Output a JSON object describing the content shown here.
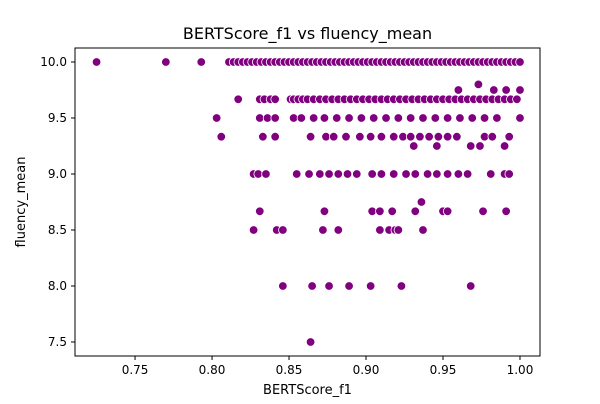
{
  "chart_data": {
    "type": "scatter",
    "title": "BERTScore_f1 vs fluency_mean",
    "xlabel": "BERTScore_f1",
    "ylabel": "fluency_mean",
    "xlim": [
      0.711,
      1.013
    ],
    "ylim": [
      7.375,
      10.125
    ],
    "xticks": [
      0.75,
      0.8,
      0.85,
      0.9,
      0.95,
      1.0
    ],
    "xtick_labels": [
      "0.75",
      "0.80",
      "0.85",
      "0.90",
      "0.95",
      "1.00"
    ],
    "yticks": [
      7.5,
      8.0,
      8.5,
      9.0,
      9.5,
      10.0
    ],
    "ytick_labels": [
      "7.5",
      "8.0",
      "8.5",
      "9.0",
      "9.5",
      "10.0"
    ],
    "grid": false,
    "marker_color": "#800080",
    "marker_edge_color": "#ffffff",
    "points": [
      {
        "x": 0.725,
        "y": 10.0
      },
      {
        "x": 0.77,
        "y": 10.0
      },
      {
        "x": 0.793,
        "y": 10.0
      },
      {
        "x": 0.811,
        "y": 10.0
      },
      {
        "x": 0.814,
        "y": 10.0
      },
      {
        "x": 0.817,
        "y": 10.0
      },
      {
        "x": 0.82,
        "y": 10.0
      },
      {
        "x": 0.823,
        "y": 10.0
      },
      {
        "x": 0.826,
        "y": 10.0
      },
      {
        "x": 0.829,
        "y": 10.0
      },
      {
        "x": 0.832,
        "y": 10.0
      },
      {
        "x": 0.835,
        "y": 10.0
      },
      {
        "x": 0.838,
        "y": 10.0
      },
      {
        "x": 0.841,
        "y": 10.0
      },
      {
        "x": 0.844,
        "y": 10.0
      },
      {
        "x": 0.847,
        "y": 10.0
      },
      {
        "x": 0.85,
        "y": 10.0
      },
      {
        "x": 0.853,
        "y": 10.0
      },
      {
        "x": 0.856,
        "y": 10.0
      },
      {
        "x": 0.859,
        "y": 10.0
      },
      {
        "x": 0.862,
        "y": 10.0
      },
      {
        "x": 0.865,
        "y": 10.0
      },
      {
        "x": 0.868,
        "y": 10.0
      },
      {
        "x": 0.871,
        "y": 10.0
      },
      {
        "x": 0.874,
        "y": 10.0
      },
      {
        "x": 0.877,
        "y": 10.0
      },
      {
        "x": 0.88,
        "y": 10.0
      },
      {
        "x": 0.883,
        "y": 10.0
      },
      {
        "x": 0.886,
        "y": 10.0
      },
      {
        "x": 0.889,
        "y": 10.0
      },
      {
        "x": 0.892,
        "y": 10.0
      },
      {
        "x": 0.895,
        "y": 10.0
      },
      {
        "x": 0.898,
        "y": 10.0
      },
      {
        "x": 0.901,
        "y": 10.0
      },
      {
        "x": 0.904,
        "y": 10.0
      },
      {
        "x": 0.907,
        "y": 10.0
      },
      {
        "x": 0.91,
        "y": 10.0
      },
      {
        "x": 0.913,
        "y": 10.0
      },
      {
        "x": 0.916,
        "y": 10.0
      },
      {
        "x": 0.919,
        "y": 10.0
      },
      {
        "x": 0.922,
        "y": 10.0
      },
      {
        "x": 0.925,
        "y": 10.0
      },
      {
        "x": 0.928,
        "y": 10.0
      },
      {
        "x": 0.931,
        "y": 10.0
      },
      {
        "x": 0.934,
        "y": 10.0
      },
      {
        "x": 0.937,
        "y": 10.0
      },
      {
        "x": 0.94,
        "y": 10.0
      },
      {
        "x": 0.943,
        "y": 10.0
      },
      {
        "x": 0.946,
        "y": 10.0
      },
      {
        "x": 0.949,
        "y": 10.0
      },
      {
        "x": 0.952,
        "y": 10.0
      },
      {
        "x": 0.955,
        "y": 10.0
      },
      {
        "x": 0.958,
        "y": 10.0
      },
      {
        "x": 0.961,
        "y": 10.0
      },
      {
        "x": 0.964,
        "y": 10.0
      },
      {
        "x": 0.967,
        "y": 10.0
      },
      {
        "x": 0.97,
        "y": 10.0
      },
      {
        "x": 0.973,
        "y": 10.0
      },
      {
        "x": 0.976,
        "y": 10.0
      },
      {
        "x": 0.979,
        "y": 10.0
      },
      {
        "x": 0.982,
        "y": 10.0
      },
      {
        "x": 0.985,
        "y": 10.0
      },
      {
        "x": 0.988,
        "y": 10.0
      },
      {
        "x": 0.991,
        "y": 10.0
      },
      {
        "x": 0.994,
        "y": 10.0
      },
      {
        "x": 0.997,
        "y": 10.0
      },
      {
        "x": 1.0,
        "y": 10.0
      },
      {
        "x": 0.973,
        "y": 9.8
      },
      {
        "x": 0.96,
        "y": 9.75
      },
      {
        "x": 0.983,
        "y": 9.75
      },
      {
        "x": 0.991,
        "y": 9.75
      },
      {
        "x": 1.0,
        "y": 9.75
      },
      {
        "x": 0.817,
        "y": 9.667
      },
      {
        "x": 0.831,
        "y": 9.667
      },
      {
        "x": 0.834,
        "y": 9.667
      },
      {
        "x": 0.838,
        "y": 9.667
      },
      {
        "x": 0.841,
        "y": 9.667
      },
      {
        "x": 0.851,
        "y": 9.667
      },
      {
        "x": 0.853,
        "y": 9.667
      },
      {
        "x": 0.856,
        "y": 9.667
      },
      {
        "x": 0.859,
        "y": 9.667
      },
      {
        "x": 0.862,
        "y": 9.667
      },
      {
        "x": 0.866,
        "y": 9.667
      },
      {
        "x": 0.87,
        "y": 9.667
      },
      {
        "x": 0.874,
        "y": 9.667
      },
      {
        "x": 0.878,
        "y": 9.667
      },
      {
        "x": 0.882,
        "y": 9.667
      },
      {
        "x": 0.886,
        "y": 9.667
      },
      {
        "x": 0.89,
        "y": 9.667
      },
      {
        "x": 0.894,
        "y": 9.667
      },
      {
        "x": 0.898,
        "y": 9.667
      },
      {
        "x": 0.902,
        "y": 9.667
      },
      {
        "x": 0.906,
        "y": 9.667
      },
      {
        "x": 0.91,
        "y": 9.667
      },
      {
        "x": 0.914,
        "y": 9.667
      },
      {
        "x": 0.918,
        "y": 9.667
      },
      {
        "x": 0.922,
        "y": 9.667
      },
      {
        "x": 0.926,
        "y": 9.667
      },
      {
        "x": 0.93,
        "y": 9.667
      },
      {
        "x": 0.934,
        "y": 9.667
      },
      {
        "x": 0.938,
        "y": 9.667
      },
      {
        "x": 0.942,
        "y": 9.667
      },
      {
        "x": 0.946,
        "y": 9.667
      },
      {
        "x": 0.95,
        "y": 9.667
      },
      {
        "x": 0.954,
        "y": 9.667
      },
      {
        "x": 0.958,
        "y": 9.667
      },
      {
        "x": 0.962,
        "y": 9.667
      },
      {
        "x": 0.966,
        "y": 9.667
      },
      {
        "x": 0.97,
        "y": 9.667
      },
      {
        "x": 0.974,
        "y": 9.667
      },
      {
        "x": 0.978,
        "y": 9.667
      },
      {
        "x": 0.982,
        "y": 9.667
      },
      {
        "x": 0.986,
        "y": 9.667
      },
      {
        "x": 0.99,
        "y": 9.667
      },
      {
        "x": 0.994,
        "y": 9.667
      },
      {
        "x": 0.998,
        "y": 9.667
      },
      {
        "x": 0.803,
        "y": 9.5
      },
      {
        "x": 0.831,
        "y": 9.5
      },
      {
        "x": 0.836,
        "y": 9.5
      },
      {
        "x": 0.841,
        "y": 9.5
      },
      {
        "x": 0.853,
        "y": 9.5
      },
      {
        "x": 0.858,
        "y": 9.5
      },
      {
        "x": 0.866,
        "y": 9.5
      },
      {
        "x": 0.873,
        "y": 9.5
      },
      {
        "x": 0.881,
        "y": 9.5
      },
      {
        "x": 0.889,
        "y": 9.5
      },
      {
        "x": 0.897,
        "y": 9.5
      },
      {
        "x": 0.905,
        "y": 9.5
      },
      {
        "x": 0.913,
        "y": 9.5
      },
      {
        "x": 0.921,
        "y": 9.5
      },
      {
        "x": 0.929,
        "y": 9.5
      },
      {
        "x": 0.937,
        "y": 9.5
      },
      {
        "x": 0.945,
        "y": 9.5
      },
      {
        "x": 0.953,
        "y": 9.5
      },
      {
        "x": 0.961,
        "y": 9.5
      },
      {
        "x": 0.969,
        "y": 9.5
      },
      {
        "x": 0.977,
        "y": 9.5
      },
      {
        "x": 0.985,
        "y": 9.5
      },
      {
        "x": 1.0,
        "y": 9.5
      },
      {
        "x": 0.806,
        "y": 9.333
      },
      {
        "x": 0.833,
        "y": 9.333
      },
      {
        "x": 0.841,
        "y": 9.333
      },
      {
        "x": 0.864,
        "y": 9.333
      },
      {
        "x": 0.874,
        "y": 9.333
      },
      {
        "x": 0.879,
        "y": 9.333
      },
      {
        "x": 0.887,
        "y": 9.333
      },
      {
        "x": 0.896,
        "y": 9.333
      },
      {
        "x": 0.903,
        "y": 9.333
      },
      {
        "x": 0.91,
        "y": 9.333
      },
      {
        "x": 0.918,
        "y": 9.333
      },
      {
        "x": 0.924,
        "y": 9.333
      },
      {
        "x": 0.929,
        "y": 9.333
      },
      {
        "x": 0.935,
        "y": 9.333
      },
      {
        "x": 0.941,
        "y": 9.333
      },
      {
        "x": 0.947,
        "y": 9.333
      },
      {
        "x": 0.953,
        "y": 9.333
      },
      {
        "x": 0.959,
        "y": 9.333
      },
      {
        "x": 0.977,
        "y": 9.333
      },
      {
        "x": 0.982,
        "y": 9.333
      },
      {
        "x": 0.993,
        "y": 9.333
      },
      {
        "x": 0.931,
        "y": 9.25
      },
      {
        "x": 0.946,
        "y": 9.25
      },
      {
        "x": 0.968,
        "y": 9.25
      },
      {
        "x": 0.974,
        "y": 9.25
      },
      {
        "x": 0.99,
        "y": 9.25
      },
      {
        "x": 0.827,
        "y": 9.0
      },
      {
        "x": 0.83,
        "y": 9.0
      },
      {
        "x": 0.835,
        "y": 9.0
      },
      {
        "x": 0.855,
        "y": 9.0
      },
      {
        "x": 0.863,
        "y": 9.0
      },
      {
        "x": 0.87,
        "y": 9.0
      },
      {
        "x": 0.876,
        "y": 9.0
      },
      {
        "x": 0.882,
        "y": 9.0
      },
      {
        "x": 0.888,
        "y": 9.0
      },
      {
        "x": 0.894,
        "y": 9.0
      },
      {
        "x": 0.904,
        "y": 9.0
      },
      {
        "x": 0.91,
        "y": 9.0
      },
      {
        "x": 0.918,
        "y": 9.0
      },
      {
        "x": 0.926,
        "y": 9.0
      },
      {
        "x": 0.932,
        "y": 9.0
      },
      {
        "x": 0.94,
        "y": 9.0
      },
      {
        "x": 0.946,
        "y": 9.0
      },
      {
        "x": 0.953,
        "y": 9.0
      },
      {
        "x": 0.96,
        "y": 9.0
      },
      {
        "x": 0.966,
        "y": 9.0
      },
      {
        "x": 0.981,
        "y": 9.0
      },
      {
        "x": 0.99,
        "y": 9.0
      },
      {
        "x": 0.993,
        "y": 9.0
      },
      {
        "x": 0.936,
        "y": 8.75
      },
      {
        "x": 0.831,
        "y": 8.667
      },
      {
        "x": 0.873,
        "y": 8.667
      },
      {
        "x": 0.904,
        "y": 8.667
      },
      {
        "x": 0.909,
        "y": 8.667
      },
      {
        "x": 0.917,
        "y": 8.667
      },
      {
        "x": 0.932,
        "y": 8.667
      },
      {
        "x": 0.95,
        "y": 8.667
      },
      {
        "x": 0.953,
        "y": 8.667
      },
      {
        "x": 0.976,
        "y": 8.667
      },
      {
        "x": 0.991,
        "y": 8.667
      },
      {
        "x": 0.827,
        "y": 8.5
      },
      {
        "x": 0.842,
        "y": 8.5
      },
      {
        "x": 0.846,
        "y": 8.5
      },
      {
        "x": 0.872,
        "y": 8.5
      },
      {
        "x": 0.882,
        "y": 8.5
      },
      {
        "x": 0.909,
        "y": 8.5
      },
      {
        "x": 0.915,
        "y": 8.5
      },
      {
        "x": 0.919,
        "y": 8.5
      },
      {
        "x": 0.921,
        "y": 8.5
      },
      {
        "x": 0.937,
        "y": 8.5
      },
      {
        "x": 0.846,
        "y": 8.0
      },
      {
        "x": 0.865,
        "y": 8.0
      },
      {
        "x": 0.876,
        "y": 8.0
      },
      {
        "x": 0.889,
        "y": 8.0
      },
      {
        "x": 0.903,
        "y": 8.0
      },
      {
        "x": 0.923,
        "y": 8.0
      },
      {
        "x": 0.968,
        "y": 8.0
      },
      {
        "x": 0.864,
        "y": 7.5
      }
    ]
  }
}
